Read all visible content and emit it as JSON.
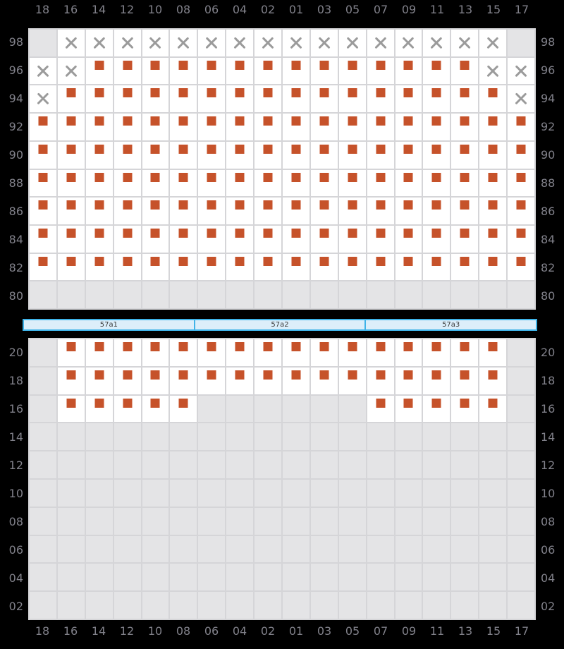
{
  "columns": [
    "18",
    "16",
    "14",
    "12",
    "10",
    "08",
    "06",
    "04",
    "02",
    "01",
    "03",
    "05",
    "07",
    "09",
    "11",
    "13",
    "15",
    "17"
  ],
  "deck_section": {
    "tier_labels": [
      "98",
      "96",
      "94",
      "92",
      "90",
      "88",
      "86",
      "84",
      "82",
      "80"
    ],
    "rows": [
      [
        "dis",
        "x",
        "x",
        "x",
        "x",
        "x",
        "x",
        "x",
        "x",
        "x",
        "x",
        "x",
        "x",
        "x",
        "x",
        "x",
        "x",
        "dis"
      ],
      [
        "x",
        "x",
        "box",
        "box",
        "box",
        "box",
        "box",
        "box",
        "box",
        "box",
        "box",
        "box",
        "box",
        "box",
        "box",
        "box",
        "x",
        "x"
      ],
      [
        "x",
        "box",
        "box",
        "box",
        "box",
        "box",
        "box",
        "box",
        "box",
        "box",
        "box",
        "box",
        "box",
        "box",
        "box",
        "box",
        "box",
        "x"
      ],
      [
        "box",
        "box",
        "box",
        "box",
        "box",
        "box",
        "box",
        "box",
        "box",
        "box",
        "box",
        "box",
        "box",
        "box",
        "box",
        "box",
        "box",
        "box"
      ],
      [
        "box",
        "box",
        "box",
        "box",
        "box",
        "box",
        "box",
        "box",
        "box",
        "box",
        "box",
        "box",
        "box",
        "box",
        "box",
        "box",
        "box",
        "box"
      ],
      [
        "box",
        "box",
        "box",
        "box",
        "box",
        "box",
        "box",
        "box",
        "box",
        "box",
        "box",
        "box",
        "box",
        "box",
        "box",
        "box",
        "box",
        "box"
      ],
      [
        "box",
        "box",
        "box",
        "box",
        "box",
        "box",
        "box",
        "box",
        "box",
        "box",
        "box",
        "box",
        "box",
        "box",
        "box",
        "box",
        "box",
        "box"
      ],
      [
        "box",
        "box",
        "box",
        "box",
        "box",
        "box",
        "box",
        "box",
        "box",
        "box",
        "box",
        "box",
        "box",
        "box",
        "box",
        "box",
        "box",
        "box"
      ],
      [
        "box",
        "box",
        "box",
        "box",
        "box",
        "box",
        "box",
        "box",
        "box",
        "box",
        "box",
        "box",
        "box",
        "box",
        "box",
        "box",
        "box",
        "box"
      ],
      [
        "dis",
        "dis",
        "dis",
        "dis",
        "dis",
        "dis",
        "dis",
        "dis",
        "dis",
        "dis",
        "dis",
        "dis",
        "dis",
        "dis",
        "dis",
        "dis",
        "dis",
        "dis"
      ]
    ]
  },
  "hatch_covers": [
    "57a1",
    "57a2",
    "57a3"
  ],
  "hold_section": {
    "tier_labels": [
      "20",
      "18",
      "16",
      "14",
      "12",
      "10",
      "08",
      "06",
      "04",
      "02"
    ],
    "rows": [
      [
        "dis",
        "box",
        "box",
        "box",
        "box",
        "box",
        "box",
        "box",
        "box",
        "box",
        "box",
        "box",
        "box",
        "box",
        "box",
        "box",
        "box",
        "dis"
      ],
      [
        "dis",
        "box",
        "box",
        "box",
        "box",
        "box",
        "box",
        "box",
        "box",
        "box",
        "box",
        "box",
        "box",
        "box",
        "box",
        "box",
        "box",
        "dis"
      ],
      [
        "dis",
        "box",
        "box",
        "box",
        "box",
        "box",
        "dis",
        "dis",
        "dis",
        "dis",
        "dis",
        "dis",
        "box",
        "box",
        "box",
        "box",
        "box",
        "dis"
      ],
      [
        "dis",
        "dis",
        "dis",
        "dis",
        "dis",
        "dis",
        "dis",
        "dis",
        "dis",
        "dis",
        "dis",
        "dis",
        "dis",
        "dis",
        "dis",
        "dis",
        "dis",
        "dis"
      ],
      [
        "dis",
        "dis",
        "dis",
        "dis",
        "dis",
        "dis",
        "dis",
        "dis",
        "dis",
        "dis",
        "dis",
        "dis",
        "dis",
        "dis",
        "dis",
        "dis",
        "dis",
        "dis"
      ],
      [
        "dis",
        "dis",
        "dis",
        "dis",
        "dis",
        "dis",
        "dis",
        "dis",
        "dis",
        "dis",
        "dis",
        "dis",
        "dis",
        "dis",
        "dis",
        "dis",
        "dis",
        "dis"
      ],
      [
        "dis",
        "dis",
        "dis",
        "dis",
        "dis",
        "dis",
        "dis",
        "dis",
        "dis",
        "dis",
        "dis",
        "dis",
        "dis",
        "dis",
        "dis",
        "dis",
        "dis",
        "dis"
      ],
      [
        "dis",
        "dis",
        "dis",
        "dis",
        "dis",
        "dis",
        "dis",
        "dis",
        "dis",
        "dis",
        "dis",
        "dis",
        "dis",
        "dis",
        "dis",
        "dis",
        "dis",
        "dis"
      ],
      [
        "dis",
        "dis",
        "dis",
        "dis",
        "dis",
        "dis",
        "dis",
        "dis",
        "dis",
        "dis",
        "dis",
        "dis",
        "dis",
        "dis",
        "dis",
        "dis",
        "dis",
        "dis"
      ],
      [
        "dis",
        "dis",
        "dis",
        "dis",
        "dis",
        "dis",
        "dis",
        "dis",
        "dis",
        "dis",
        "dis",
        "dis",
        "dis",
        "dis",
        "dis",
        "dis",
        "dis",
        "dis"
      ]
    ]
  },
  "cell_states_legend": {
    "box": "occupied-slot-with-container",
    "x": "blocked-slot",
    "dis": "unavailable-slot"
  },
  "colors": {
    "background": "#000000",
    "grid_line": "#D5D5D8",
    "slot_fill": "#FFFFFF",
    "slot_disabled_fill": "#E4E4E6",
    "container_box": "#C6522A",
    "x_mark": "#9B9B9B",
    "hatch_border": "#3FB3E8",
    "hatch_fill": "#DCEEFA",
    "hatch_text": "#3A3A3A",
    "label_text": "#81818A"
  }
}
